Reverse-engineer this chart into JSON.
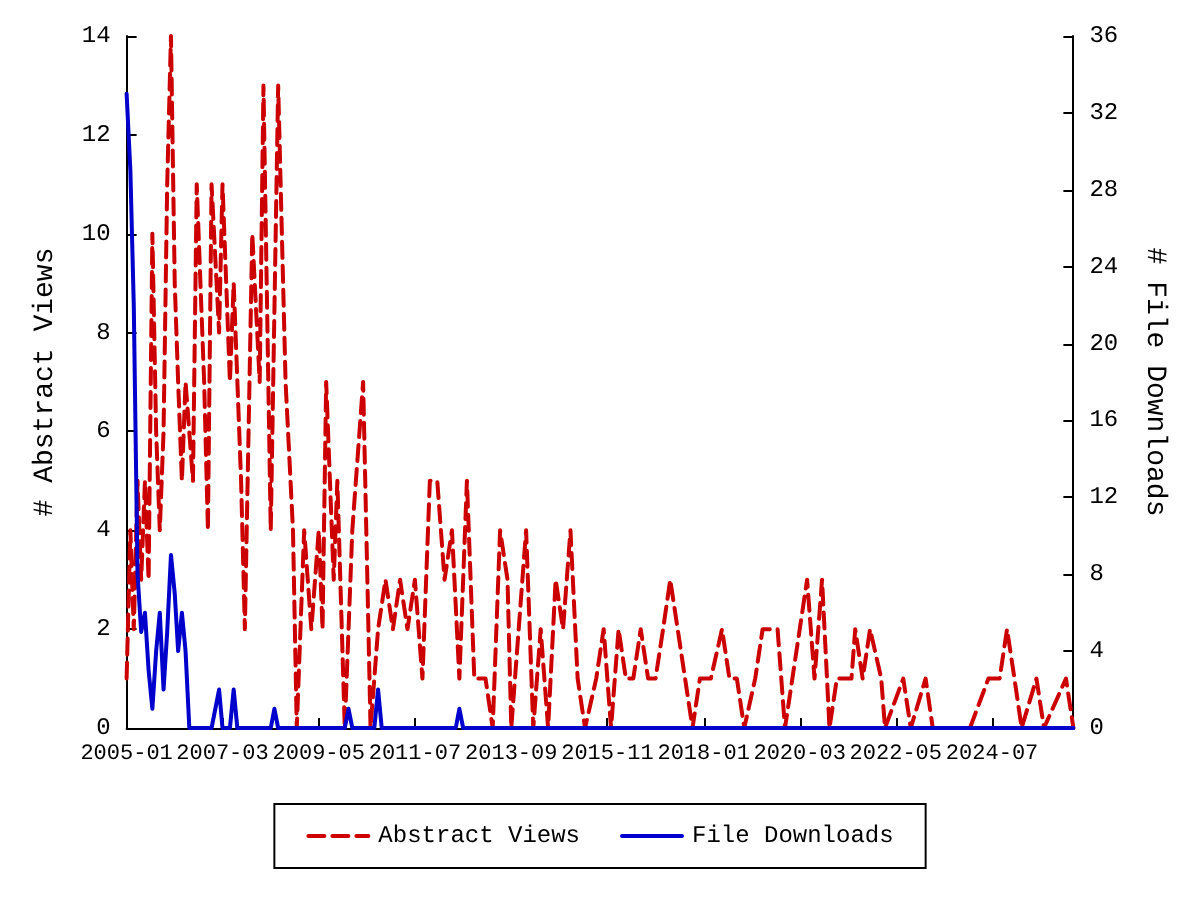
{
  "chart_data": {
    "type": "line",
    "xlabel": null,
    "ylabel": "# Abstract Views",
    "y2label": "# File Downloads",
    "xlim": [
      "2005-01",
      "2026-05"
    ],
    "xticks": [
      "2005-01",
      "2007-03",
      "2009-05",
      "2011-07",
      "2013-09",
      "2015-11",
      "2018-01",
      "2020-03",
      "2022-05",
      "2024-07"
    ],
    "ylim": [
      0,
      14
    ],
    "yticks": [
      0,
      2,
      4,
      6,
      8,
      10,
      12,
      14
    ],
    "y2lim": [
      0,
      36
    ],
    "y2ticks": [
      0,
      4,
      8,
      12,
      16,
      20,
      24,
      28,
      32,
      36
    ],
    "grid": false,
    "legend": "bottom",
    "marker": "none",
    "series": [
      {
        "name": "Abstract Views",
        "color": "#cc0000",
        "line_style": "dashed",
        "x": [
          "2005-01",
          "2005-02",
          "2005-03",
          "2005-04",
          "2005-05",
          "2005-06",
          "2005-07",
          "2005-08",
          "2005-09",
          "2005-10",
          "2005-11",
          "2005-12",
          "2006-01",
          "2006-02",
          "2006-03",
          "2006-04",
          "2006-05",
          "2006-07",
          "2006-08",
          "2006-10",
          "2006-11",
          "2006-12",
          "2007-02",
          "2007-03",
          "2007-05",
          "2007-06",
          "2007-08",
          "2007-09",
          "2007-11",
          "2008-01",
          "2008-02",
          "2008-04",
          "2008-06",
          "2008-08",
          "2008-10",
          "2008-11",
          "2009-01",
          "2009-03",
          "2009-05",
          "2009-06",
          "2009-07",
          "2009-09",
          "2009-10",
          "2009-12",
          "2010-02",
          "2010-05",
          "2010-07",
          "2010-09",
          "2010-11",
          "2011-01",
          "2011-03",
          "2011-05",
          "2011-07",
          "2011-09",
          "2011-11",
          "2012-01",
          "2012-03",
          "2012-05",
          "2012-07",
          "2012-09",
          "2012-11",
          "2013-02",
          "2013-04",
          "2013-06",
          "2013-08",
          "2013-09",
          "2014-01",
          "2014-03",
          "2014-05",
          "2014-07",
          "2014-09",
          "2014-11",
          "2015-01",
          "2015-03",
          "2015-05",
          "2015-08",
          "2015-10",
          "2015-12",
          "2016-02",
          "2016-04",
          "2016-06",
          "2016-08",
          "2016-10",
          "2016-12",
          "2017-02",
          "2017-04",
          "2017-06",
          "2017-08",
          "2017-10",
          "2017-12",
          "2018-03",
          "2018-06",
          "2018-08",
          "2018-10",
          "2018-12",
          "2019-03",
          "2019-05",
          "2019-07",
          "2019-09",
          "2019-11",
          "2020-05",
          "2020-07",
          "2020-09",
          "2020-11",
          "2021-01",
          "2021-03",
          "2021-05",
          "2021-06",
          "2021-08",
          "2021-10",
          "2022-01",
          "2022-02",
          "2022-07",
          "2022-09",
          "2023-01",
          "2023-03",
          "2024-01",
          "2024-06",
          "2024-09",
          "2024-11",
          "2025-01",
          "2025-03",
          "2025-07",
          "2025-09",
          "2026-03",
          "2026-05"
        ],
        "values": [
          1,
          4,
          2,
          5,
          3,
          5,
          3,
          10,
          6,
          4,
          6,
          11,
          14,
          9,
          7,
          5,
          7,
          5,
          11,
          7,
          4,
          11,
          8,
          11,
          7,
          9,
          5,
          2,
          10,
          7,
          13,
          4,
          13,
          7,
          4,
          0,
          4,
          2,
          4,
          2,
          7,
          3,
          5,
          0,
          4,
          7,
          0,
          2,
          3,
          2,
          3,
          2,
          3,
          1,
          5,
          5,
          3,
          4,
          1,
          5,
          1,
          1,
          0,
          4,
          3,
          0,
          4,
          0,
          2,
          0,
          3,
          2,
          4,
          1,
          0,
          1,
          2,
          0,
          2,
          1,
          1,
          2,
          1,
          1,
          2,
          3,
          2,
          1,
          0,
          1,
          1,
          2,
          1,
          1,
          0,
          1,
          2,
          2,
          2,
          0,
          3,
          1,
          3,
          0,
          1,
          1,
          1,
          2,
          1,
          2,
          1,
          0,
          1,
          0,
          1,
          0,
          0,
          1,
          1,
          2,
          1,
          0,
          1,
          0,
          1,
          0
        ]
      },
      {
        "name": "File Downloads",
        "color": "#0000cc",
        "line_style": "solid",
        "axis": "y2",
        "x": [
          "2005-01",
          "2005-02",
          "2005-03",
          "2005-04",
          "2005-05",
          "2005-06",
          "2005-07",
          "2005-08",
          "2005-09",
          "2005-10",
          "2005-11",
          "2005-12",
          "2006-01",
          "2006-02",
          "2006-03",
          "2006-04",
          "2006-05",
          "2006-06",
          "2006-12",
          "2007-02",
          "2007-03",
          "2007-05",
          "2007-06",
          "2007-07",
          "2008-04",
          "2008-05",
          "2008-06",
          "2009-12",
          "2010-01",
          "2010-02",
          "2010-08",
          "2010-09",
          "2010-10",
          "2012-06",
          "2012-07",
          "2012-08",
          "2026-05"
        ],
        "values": [
          33,
          29,
          22,
          8,
          5,
          6,
          3,
          1,
          4,
          6,
          2,
          5,
          9,
          7,
          4,
          6,
          4,
          0,
          0,
          2,
          0,
          0,
          2,
          0,
          0,
          1,
          0,
          0,
          1,
          0,
          0,
          2,
          0,
          0,
          1,
          0,
          0
        ]
      }
    ]
  }
}
